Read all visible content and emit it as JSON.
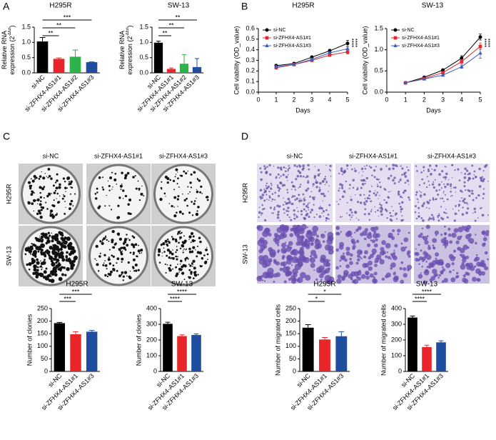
{
  "panel_labels": [
    "A",
    "B",
    "C",
    "D"
  ],
  "images": {
    "C": {
      "columns": [
        "si-NC",
        "si-ZFHX4-AS1#1",
        "si-ZFHX4-AS1#3"
      ],
      "rows": [
        "H295R",
        "SW-13"
      ]
    },
    "D": {
      "columns": [
        "si-NC",
        "si-ZFHX4-AS1#1",
        "si-ZFHX4-AS1#3"
      ],
      "rows": [
        "H295R",
        "SW-13"
      ]
    }
  },
  "chart_data": [
    {
      "type": "bar",
      "title": "H295R",
      "ylabel_lines": [
        "Relative RNA",
        "expression (2"
      ],
      "ylabel_sup": "-ΔΔct",
      "ylabel_end": ")",
      "categories": [
        "si-NC",
        "si-ZFHX4-AS1#1",
        "si-ZFHX4-AS1#2",
        "si-ZFHX4-AS1#3"
      ],
      "values": [
        1.03,
        0.46,
        0.53,
        0.35
      ],
      "errors": [
        0.13,
        0.03,
        0.22,
        0.01
      ],
      "colors": [
        "#000000",
        "#e8262a",
        "#2db34a",
        "#1f4ea1"
      ],
      "ylim": [
        0,
        1.5
      ],
      "yticks": [
        {
          "value": 0,
          "label": "0.0"
        },
        0.5,
        {
          "value": 1,
          "label": "1.0"
        },
        1.5
      ],
      "annotations": [
        {
          "text": "**",
          "from": 0,
          "to": 1
        },
        {
          "text": "**",
          "from": 0,
          "to": 2
        },
        {
          "text": "***",
          "from": 0,
          "to": 3
        }
      ]
    },
    {
      "type": "bar",
      "title": "SW-13",
      "ylabel_lines": [
        "Relative RNA",
        "expression (2"
      ],
      "ylabel_sup": "-ΔΔct",
      "ylabel_end": ")",
      "categories": [
        "si-NC",
        "si-ZFHX4-AS1#1",
        "si-ZFHX4-AS1#2",
        "si-ZFHX4-AS1#3"
      ],
      "values": [
        0.99,
        0.13,
        0.3,
        0.19
      ],
      "errors": [
        0.05,
        0.03,
        0.3,
        0.28
      ],
      "colors": [
        "#000000",
        "#e8262a",
        "#2db34a",
        "#1f4ea1"
      ],
      "ylim": [
        0,
        1.5
      ],
      "yticks": [
        {
          "value": 0,
          "label": "0.0"
        },
        0.5,
        {
          "value": 1,
          "label": "1.0"
        },
        1.5
      ],
      "annotations": [
        {
          "text": "**",
          "from": 0,
          "to": 1
        },
        {
          "text": "**",
          "from": 0,
          "to": 2
        },
        {
          "text": "**",
          "from": 0,
          "to": 3
        }
      ]
    },
    {
      "type": "line",
      "title": "H295R",
      "xlabel": "Days",
      "ylabel": "Cell viability (OD_value)",
      "x": [
        1,
        2,
        3,
        4,
        5
      ],
      "xlim": [
        0,
        5
      ],
      "xticks": [
        0,
        1,
        2,
        3,
        4,
        5
      ],
      "ylim": [
        0,
        0.6
      ],
      "yticks": [
        {
          "value": 0,
          "label": "0.0"
        },
        0.1,
        0.2,
        0.3,
        0.4,
        0.5,
        0.6
      ],
      "legend": "upper left",
      "significance": [
        "****",
        "****"
      ],
      "series": [
        {
          "name": "si-NC",
          "color": "#000000",
          "marker": "circle",
          "values": [
            0.25,
            0.27,
            0.33,
            0.39,
            0.46
          ],
          "errors": [
            0.01,
            0.01,
            0.01,
            0.015,
            0.03
          ]
        },
        {
          "name": "si-ZFHX4-AS1#1",
          "color": "#e8262a",
          "marker": "square",
          "values": [
            0.23,
            0.26,
            0.3,
            0.35,
            0.38
          ],
          "errors": [
            0.01,
            0.01,
            0.01,
            0.01,
            0.02
          ]
        },
        {
          "name": "si-ZFHX4-AS1#3",
          "color": "#3b5fc0",
          "marker": "triangle",
          "values": [
            0.24,
            0.26,
            0.31,
            0.37,
            0.41
          ],
          "errors": [
            0.01,
            0.01,
            0.01,
            0.01,
            0.02
          ]
        }
      ]
    },
    {
      "type": "line",
      "title": "SW-13",
      "xlabel": "Days",
      "ylabel": "Cell viability (OD_value)",
      "x": [
        1,
        2,
        3,
        4,
        5
      ],
      "xlim": [
        0,
        5
      ],
      "xticks": [
        0,
        1,
        2,
        3,
        4,
        5
      ],
      "ylim": [
        0,
        1.5
      ],
      "yticks": [
        {
          "value": 0,
          "label": "0.0"
        },
        0.5,
        {
          "value": 1,
          "label": "1.0"
        },
        1.5
      ],
      "legend": "upper left",
      "significance": [
        "****",
        "****"
      ],
      "series": [
        {
          "name": "si-NC",
          "color": "#000000",
          "marker": "circle",
          "values": [
            0.22,
            0.35,
            0.52,
            0.8,
            1.3
          ],
          "errors": [
            0.01,
            0.02,
            0.02,
            0.06,
            0.07
          ]
        },
        {
          "name": "si-ZFHX4-AS1#1",
          "color": "#e8262a",
          "marker": "square",
          "values": [
            0.22,
            0.32,
            0.46,
            0.72,
            1.08
          ],
          "errors": [
            0.01,
            0.02,
            0.02,
            0.05,
            0.08
          ]
        },
        {
          "name": "si-ZFHX4-AS1#3",
          "color": "#3b5fc0",
          "marker": "triangle",
          "values": [
            0.22,
            0.31,
            0.4,
            0.6,
            0.92
          ],
          "errors": [
            0.01,
            0.02,
            0.02,
            0.04,
            0.12
          ]
        }
      ]
    },
    {
      "type": "bar",
      "title": "H295R",
      "ylabel": "Number of clonies",
      "categories": [
        "si-NC",
        "si-ZFHX4-AS1#1",
        "si-ZFHX4-AS1#3"
      ],
      "values": [
        192,
        148,
        158
      ],
      "errors": [
        3,
        10,
        5
      ],
      "colors": [
        "#000000",
        "#e8262a",
        "#1f4ea1"
      ],
      "ylim": [
        0,
        250
      ],
      "yticks": [
        0,
        50,
        100,
        150,
        200,
        250
      ],
      "annotations": [
        {
          "text": "***",
          "from": 0,
          "to": 1
        },
        {
          "text": "***",
          "from": 0,
          "to": 2
        }
      ]
    },
    {
      "type": "bar",
      "title": "SW-13",
      "ylabel": "Number of clonies",
      "categories": [
        "si-NC",
        "si-ZFHX4-AS1#1",
        "si-ZFHX4-AS1#3"
      ],
      "values": [
        303,
        225,
        232
      ],
      "errors": [
        10,
        8,
        7
      ],
      "colors": [
        "#000000",
        "#e8262a",
        "#1f4ea1"
      ],
      "ylim": [
        0,
        400
      ],
      "yticks": [
        0,
        100,
        200,
        300,
        400
      ],
      "annotations": [
        {
          "text": "****",
          "from": 0,
          "to": 1
        },
        {
          "text": "****",
          "from": 0,
          "to": 2
        }
      ]
    },
    {
      "type": "bar",
      "title": "H295R",
      "ylabel": "Number of migrated cells",
      "categories": [
        "si-NC",
        "si-ZFHX4-AS1#1",
        "si-ZFHX4-AS1#3"
      ],
      "values": [
        174,
        127,
        140
      ],
      "errors": [
        12,
        8,
        18
      ],
      "colors": [
        "#000000",
        "#e8262a",
        "#1f4ea1"
      ],
      "ylim": [
        0,
        250
      ],
      "yticks": [
        0,
        50,
        100,
        150,
        200,
        250
      ],
      "annotations": [
        {
          "text": "*",
          "from": 0,
          "to": 1
        },
        {
          "text": "*",
          "from": 0,
          "to": 2
        }
      ]
    },
    {
      "type": "bar",
      "title": "SW-13",
      "ylabel": "Number of migrated cells",
      "categories": [
        "si-NC",
        "si-ZFHX4-AS1#1",
        "si-ZFHX4-AS1#3"
      ],
      "values": [
        343,
        155,
        185
      ],
      "errors": [
        10,
        12,
        10
      ],
      "colors": [
        "#000000",
        "#e8262a",
        "#1f4ea1"
      ],
      "ylim": [
        0,
        400
      ],
      "yticks": [
        0,
        100,
        200,
        300,
        400
      ],
      "annotations": [
        {
          "text": "****",
          "from": 0,
          "to": 1
        },
        {
          "text": "****",
          "from": 0,
          "to": 2
        }
      ]
    }
  ]
}
